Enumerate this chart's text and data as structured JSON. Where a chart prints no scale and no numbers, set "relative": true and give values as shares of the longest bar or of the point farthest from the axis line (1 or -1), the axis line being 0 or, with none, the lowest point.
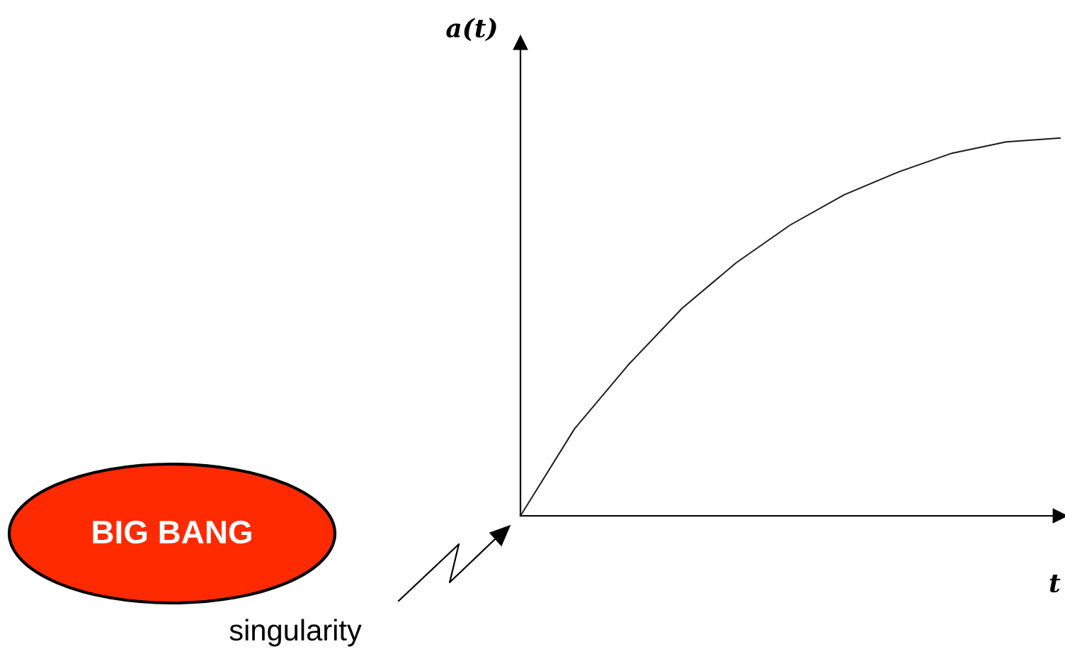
{
  "chart_data": {
    "type": "line",
    "relative": true,
    "xlabel": "t",
    "ylabel": "a(t)",
    "categories": [
      null,
      null,
      null,
      null,
      null,
      null,
      null,
      null,
      null,
      null,
      null
    ],
    "series": [
      {
        "color": "#1a1a1a",
        "values": [
          0,
          0.23,
          0.4,
          0.55,
          0.67,
          0.77,
          0.85,
          0.91,
          0.96,
          0.99,
          1.0
        ]
      }
    ],
    "annotations": [
      "BIG BANG",
      "singularity"
    ],
    "grid": false,
    "legend": false,
    "marker": "none",
    "line_style": "solid"
  }
}
